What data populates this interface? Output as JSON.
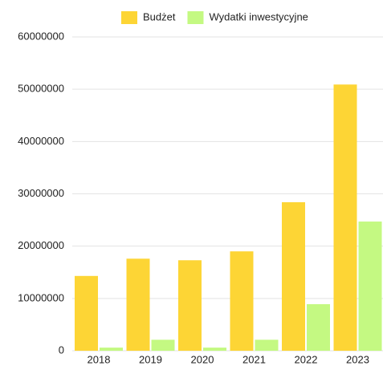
{
  "chart_data": {
    "type": "bar",
    "categories": [
      "2018",
      "2019",
      "2020",
      "2021",
      "2022",
      "2023"
    ],
    "series": [
      {
        "name": "Budżet",
        "color": "#fdd535",
        "values": [
          14300000,
          17600000,
          17300000,
          19000000,
          28400000,
          50900000
        ]
      },
      {
        "name": "Wydatki inwestycyjne",
        "color": "#c4f982",
        "values": [
          600000,
          2100000,
          600000,
          2100000,
          8900000,
          24700000
        ]
      }
    ],
    "ylim": [
      0,
      60000000
    ],
    "yticks": [
      0,
      10000000,
      20000000,
      30000000,
      40000000,
      50000000,
      60000000
    ],
    "grid": true,
    "legend": "top"
  }
}
